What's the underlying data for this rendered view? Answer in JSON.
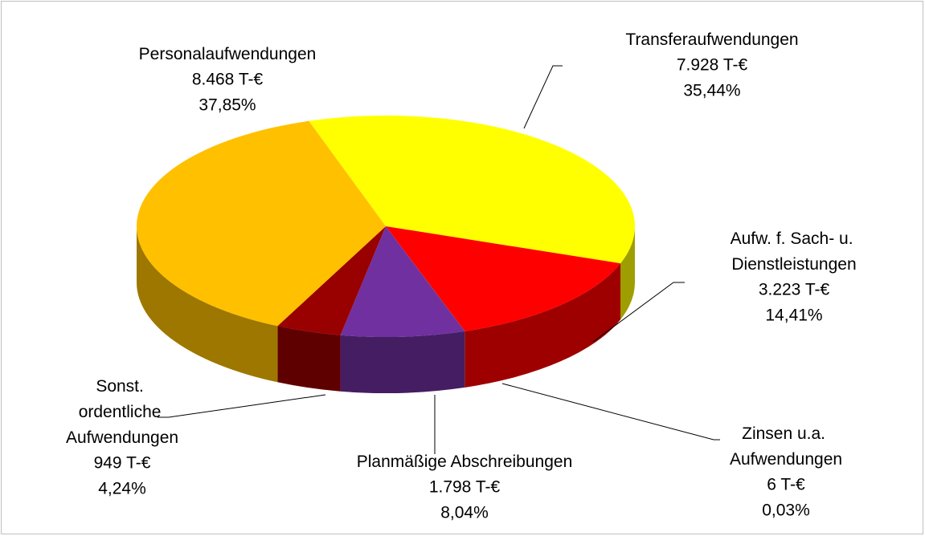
{
  "chart_data": {
    "type": "pie",
    "categories": [
      "Transferaufwendungen",
      "Aufw. f. Sach- u. Dienstleistungen",
      "Zinsen u.a. Aufwendungen",
      "Planmäßige Abschreibungen",
      "Sonst. ordentliche Aufwendungen",
      "Personalaufwendungen"
    ],
    "values": [
      7928,
      3223,
      6,
      1798,
      949,
      8468
    ],
    "value_labels": [
      "7.928 T-€",
      "3.223 T-€",
      "6 T-€",
      "1.798 T-€",
      "949 T-€",
      "8.468 T-€"
    ],
    "shares": [
      35.44,
      14.41,
      0.03,
      8.04,
      4.24,
      37.85
    ],
    "share_labels": [
      "35,44%",
      "14,41%",
      "0,03%",
      "8,04%",
      "4,24%",
      "37,85%"
    ],
    "colors": [
      "#ffff00",
      "#ff0000",
      "#8b0000",
      "#7030a0",
      "#990000",
      "#ffc000"
    ]
  }
}
